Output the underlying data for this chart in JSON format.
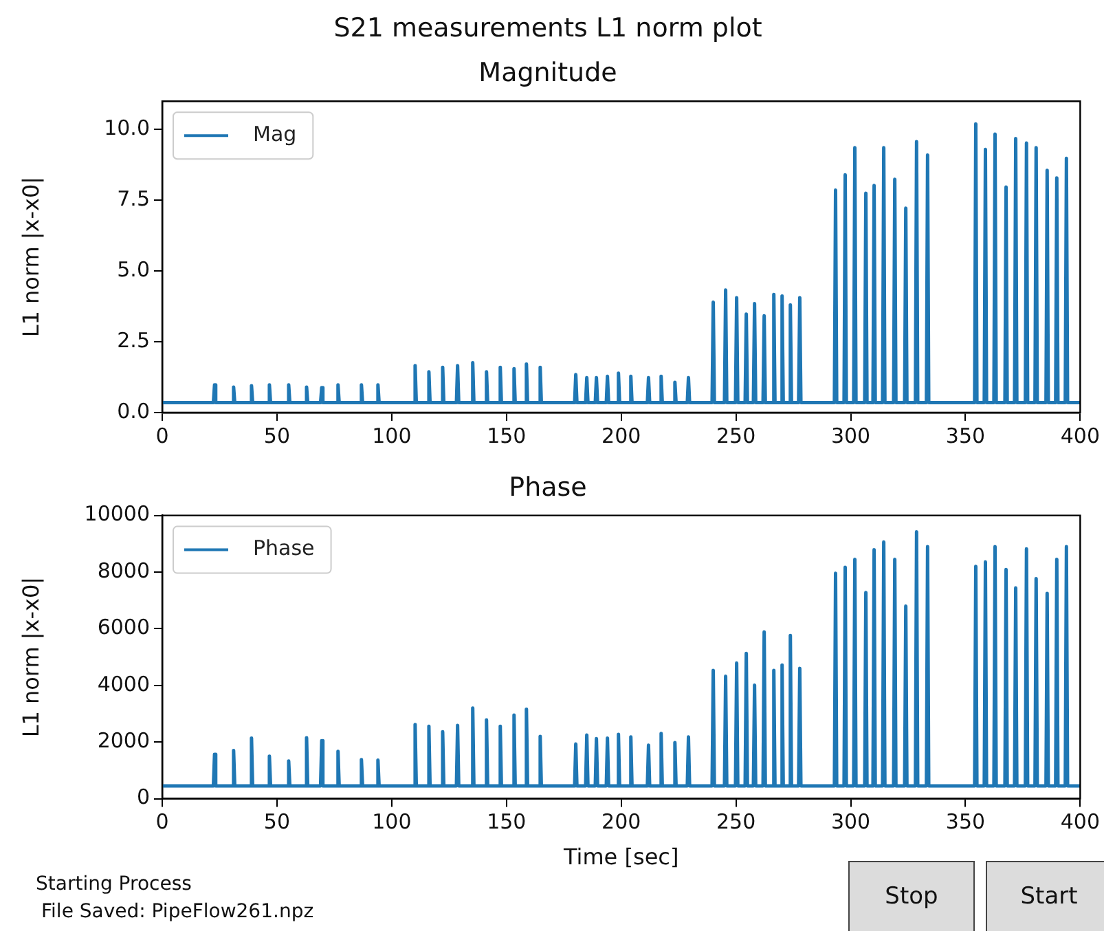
{
  "chart_data": [
    {
      "type": "line",
      "title": "S21 measurements L1 norm plot",
      "subtitle": "Magnitude",
      "ylabel": "L1 norm |x-x0|",
      "x": [
        0,
        22.3,
        22.8,
        23.3,
        30.6,
        31.1,
        31.6,
        38.4,
        38.9,
        39.4,
        46.2,
        46.7,
        47.2,
        54.6,
        55.1,
        55.6,
        62.4,
        62.9,
        63.4,
        69,
        69.5,
        70,
        76.1,
        76.6,
        77.1,
        86.3,
        86.8,
        87.3,
        93.5,
        94,
        94.5,
        109.7,
        110.2,
        110.7,
        115.7,
        116.2,
        116.7,
        121.7,
        122.2,
        122.7,
        128.2,
        128.7,
        129.2,
        134.8,
        135.3,
        135.8,
        140.8,
        141.3,
        141.8,
        146.8,
        147.3,
        147.8,
        152.8,
        153.3,
        153.8,
        158.2,
        158.7,
        159.2,
        164.2,
        164.7,
        165.2,
        179.7,
        180.2,
        180.7,
        184.5,
        185,
        185.5,
        188.7,
        189.2,
        189.7,
        193.5,
        194,
        194.5,
        198.3,
        198.8,
        199.3,
        203.7,
        204.2,
        204.7,
        211.4,
        211.9,
        212.4,
        216.9,
        217.4,
        217.9,
        222.9,
        223.4,
        223.9,
        228.8,
        229.3,
        229.8,
        239.6,
        240.1,
        240.6,
        245,
        245.5,
        246,
        249.8,
        250.3,
        250.8,
        254,
        254.5,
        255,
        257.6,
        258.1,
        258.6,
        261.8,
        262.3,
        262.8,
        266,
        266.5,
        267,
        269.6,
        270.1,
        270.6,
        273.2,
        273.7,
        274.2,
        277.3,
        277.8,
        278.3,
        292.9,
        293.4,
        293.9,
        297.1,
        297.6,
        298.1,
        301.3,
        301.8,
        302.3,
        306.1,
        306.6,
        307.1,
        309.7,
        310.2,
        310.7,
        313.9,
        314.4,
        314.9,
        318.7,
        319.2,
        319.7,
        323.5,
        324,
        324.5,
        328.2,
        328.7,
        329.2,
        333,
        333.5,
        334,
        354,
        354.5,
        355,
        358.2,
        358.7,
        359.2,
        362.4,
        362.9,
        363.4,
        367.2,
        367.7,
        368.2,
        371.4,
        371.9,
        372.4,
        376.1,
        376.6,
        377.1,
        380.3,
        380.8,
        381.3,
        385.1,
        385.6,
        386.1,
        389.3,
        389.8,
        390.3,
        393.5,
        394,
        394.5,
        400
      ],
      "series": [
        {
          "name": "Mag",
          "color": "#1f77b4",
          "values": [
            0.35,
            0.35,
            0.98,
            0.35,
            0.35,
            0.9,
            0.35,
            0.35,
            0.95,
            0.35,
            0.35,
            0.98,
            0.35,
            0.35,
            0.98,
            0.35,
            0.35,
            0.9,
            0.35,
            0.35,
            0.88,
            0.35,
            0.35,
            0.98,
            0.35,
            0.35,
            0.98,
            0.35,
            0.35,
            0.98,
            0.35,
            0.35,
            1.66,
            0.35,
            0.35,
            1.44,
            0.35,
            0.35,
            1.6,
            0.35,
            0.35,
            1.66,
            0.35,
            0.35,
            1.76,
            0.35,
            0.35,
            1.44,
            0.35,
            0.35,
            1.6,
            0.35,
            0.35,
            1.55,
            0.35,
            0.35,
            1.71,
            0.35,
            0.35,
            1.6,
            0.35,
            0.35,
            1.34,
            0.35,
            0.35,
            1.23,
            0.35,
            0.35,
            1.23,
            0.35,
            0.35,
            1.28,
            0.35,
            0.35,
            1.39,
            0.35,
            0.35,
            1.28,
            0.35,
            0.35,
            1.23,
            0.35,
            0.35,
            1.28,
            0.35,
            0.35,
            1.07,
            0.35,
            0.35,
            1.23,
            0.35,
            0.35,
            3.9,
            0.35,
            0.35,
            4.33,
            0.35,
            0.35,
            4.06,
            0.35,
            0.35,
            3.48,
            0.35,
            0.35,
            3.85,
            0.35,
            0.35,
            3.42,
            0.35,
            0.35,
            4.17,
            0.35,
            0.35,
            4.12,
            0.35,
            0.35,
            3.8,
            0.35,
            0.35,
            4.06,
            0.35,
            0.35,
            7.86,
            0.35,
            0.35,
            8.4,
            0.35,
            0.35,
            9.36,
            0.35,
            0.35,
            7.75,
            0.35,
            0.35,
            8.02,
            0.35,
            0.35,
            9.36,
            0.35,
            0.35,
            8.24,
            0.35,
            0.35,
            7.22,
            0.35,
            0.35,
            9.57,
            0.35,
            0.35,
            9.1,
            0.35,
            0.35,
            10.2,
            0.35,
            0.35,
            9.3,
            0.35,
            0.35,
            9.84,
            0.35,
            0.35,
            7.97,
            0.35,
            0.35,
            9.68,
            0.35,
            0.35,
            9.52,
            0.35,
            0.35,
            9.36,
            0.35,
            0.35,
            8.56,
            0.35,
            0.35,
            8.29,
            0.35,
            0.35,
            8.98,
            0.35,
            0.35
          ]
        }
      ],
      "xlim": [
        0,
        400
      ],
      "xticks": [
        0,
        50,
        100,
        150,
        200,
        250,
        300,
        350,
        400
      ],
      "ylim": [
        0,
        11
      ],
      "yticks": [
        {
          "value": 0,
          "label": "0.0"
        },
        {
          "value": 2.5,
          "label": "2.5"
        },
        {
          "value": 5,
          "label": "5.0"
        },
        {
          "value": 7.5,
          "label": "7.5"
        },
        {
          "value": 10,
          "label": "10.0"
        }
      ],
      "grid": false,
      "legend": "top left",
      "marker": "none",
      "line_style": "solid"
    },
    {
      "type": "line",
      "title": "Phase",
      "xlabel": "Time [sec]",
      "ylabel": "L1 norm |x-x0|",
      "x": [
        0,
        22.3,
        22.8,
        23.3,
        30.6,
        31.1,
        31.6,
        38.4,
        38.9,
        39.4,
        46.2,
        46.7,
        47.2,
        54.6,
        55.1,
        55.6,
        62.4,
        62.9,
        63.4,
        69,
        69.5,
        70,
        76.1,
        76.6,
        77.1,
        86.3,
        86.8,
        87.3,
        93.5,
        94,
        94.5,
        109.7,
        110.2,
        110.7,
        115.7,
        116.2,
        116.7,
        121.7,
        122.2,
        122.7,
        128.2,
        128.7,
        129.2,
        134.8,
        135.3,
        135.8,
        140.8,
        141.3,
        141.8,
        146.8,
        147.3,
        147.8,
        152.8,
        153.3,
        153.8,
        158.2,
        158.7,
        159.2,
        164.2,
        164.7,
        165.2,
        179.7,
        180.2,
        180.7,
        184.5,
        185,
        185.5,
        188.7,
        189.2,
        189.7,
        193.5,
        194,
        194.5,
        198.3,
        198.8,
        199.3,
        203.7,
        204.2,
        204.7,
        211.4,
        211.9,
        212.4,
        216.9,
        217.4,
        217.9,
        222.9,
        223.4,
        223.9,
        228.8,
        229.3,
        229.8,
        239.6,
        240.1,
        240.6,
        245,
        245.5,
        246,
        249.8,
        250.3,
        250.8,
        254,
        254.5,
        255,
        257.6,
        258.1,
        258.6,
        261.8,
        262.3,
        262.8,
        266,
        266.5,
        267,
        269.6,
        270.1,
        270.6,
        273.2,
        273.7,
        274.2,
        277.3,
        277.8,
        278.3,
        292.9,
        293.4,
        293.9,
        297.1,
        297.6,
        298.1,
        301.3,
        301.8,
        302.3,
        306.1,
        306.6,
        307.1,
        309.7,
        310.2,
        310.7,
        313.9,
        314.4,
        314.9,
        318.7,
        319.2,
        319.7,
        323.5,
        324,
        324.5,
        328.2,
        328.7,
        329.2,
        333,
        333.5,
        334,
        354,
        354.5,
        355,
        358.2,
        358.7,
        359.2,
        362.4,
        362.9,
        363.4,
        367.2,
        367.7,
        368.2,
        371.4,
        371.9,
        372.4,
        376.1,
        376.6,
        377.1,
        380.3,
        380.8,
        381.3,
        385.1,
        385.6,
        386.1,
        389.3,
        389.8,
        390.3,
        393.5,
        394,
        394.5,
        400
      ],
      "series": [
        {
          "name": "Phase",
          "color": "#1f77b4",
          "values": [
            450,
            450,
            1570,
            450,
            450,
            1700,
            450,
            450,
            2140,
            450,
            450,
            1500,
            450,
            450,
            1330,
            450,
            450,
            2150,
            450,
            450,
            2050,
            450,
            450,
            1670,
            450,
            450,
            1380,
            450,
            450,
            1360,
            450,
            450,
            2620,
            450,
            450,
            2560,
            450,
            450,
            2360,
            450,
            450,
            2590,
            450,
            450,
            3200,
            450,
            450,
            2780,
            450,
            450,
            2560,
            450,
            450,
            2950,
            450,
            450,
            3160,
            450,
            450,
            2200,
            450,
            450,
            1930,
            450,
            450,
            2250,
            450,
            450,
            2120,
            450,
            450,
            2140,
            450,
            450,
            2270,
            450,
            450,
            2180,
            450,
            450,
            1890,
            450,
            450,
            2300,
            450,
            450,
            1980,
            450,
            450,
            2180,
            450,
            450,
            4530,
            450,
            450,
            4320,
            450,
            450,
            4790,
            450,
            450,
            5130,
            450,
            450,
            4010,
            450,
            450,
            5890,
            450,
            450,
            4530,
            450,
            450,
            4720,
            450,
            450,
            5760,
            450,
            450,
            4600,
            450,
            450,
            7960,
            450,
            450,
            8170,
            450,
            450,
            8450,
            450,
            450,
            7280,
            450,
            450,
            8790,
            450,
            450,
            9060,
            450,
            450,
            8450,
            450,
            450,
            6800,
            450,
            450,
            9420,
            450,
            450,
            8900,
            450,
            450,
            8200,
            450,
            450,
            8360,
            450,
            450,
            8900,
            450,
            450,
            8090,
            450,
            450,
            7440,
            450,
            450,
            8820,
            450,
            450,
            7770,
            450,
            450,
            7250,
            450,
            450,
            8450,
            450,
            450,
            8900,
            450,
            450
          ]
        }
      ],
      "xlim": [
        0,
        400
      ],
      "xticks": [
        0,
        50,
        100,
        150,
        200,
        250,
        300,
        350,
        400
      ],
      "ylim": [
        0,
        10000
      ],
      "yticks": [
        0,
        2000,
        4000,
        6000,
        8000,
        10000
      ],
      "grid": false,
      "legend": "top left",
      "marker": "none",
      "line_style": "solid",
      "annotations": [
        "Starting Process",
        "File Saved: PipeFlow261.npz",
        "Stop",
        "Start"
      ]
    }
  ]
}
